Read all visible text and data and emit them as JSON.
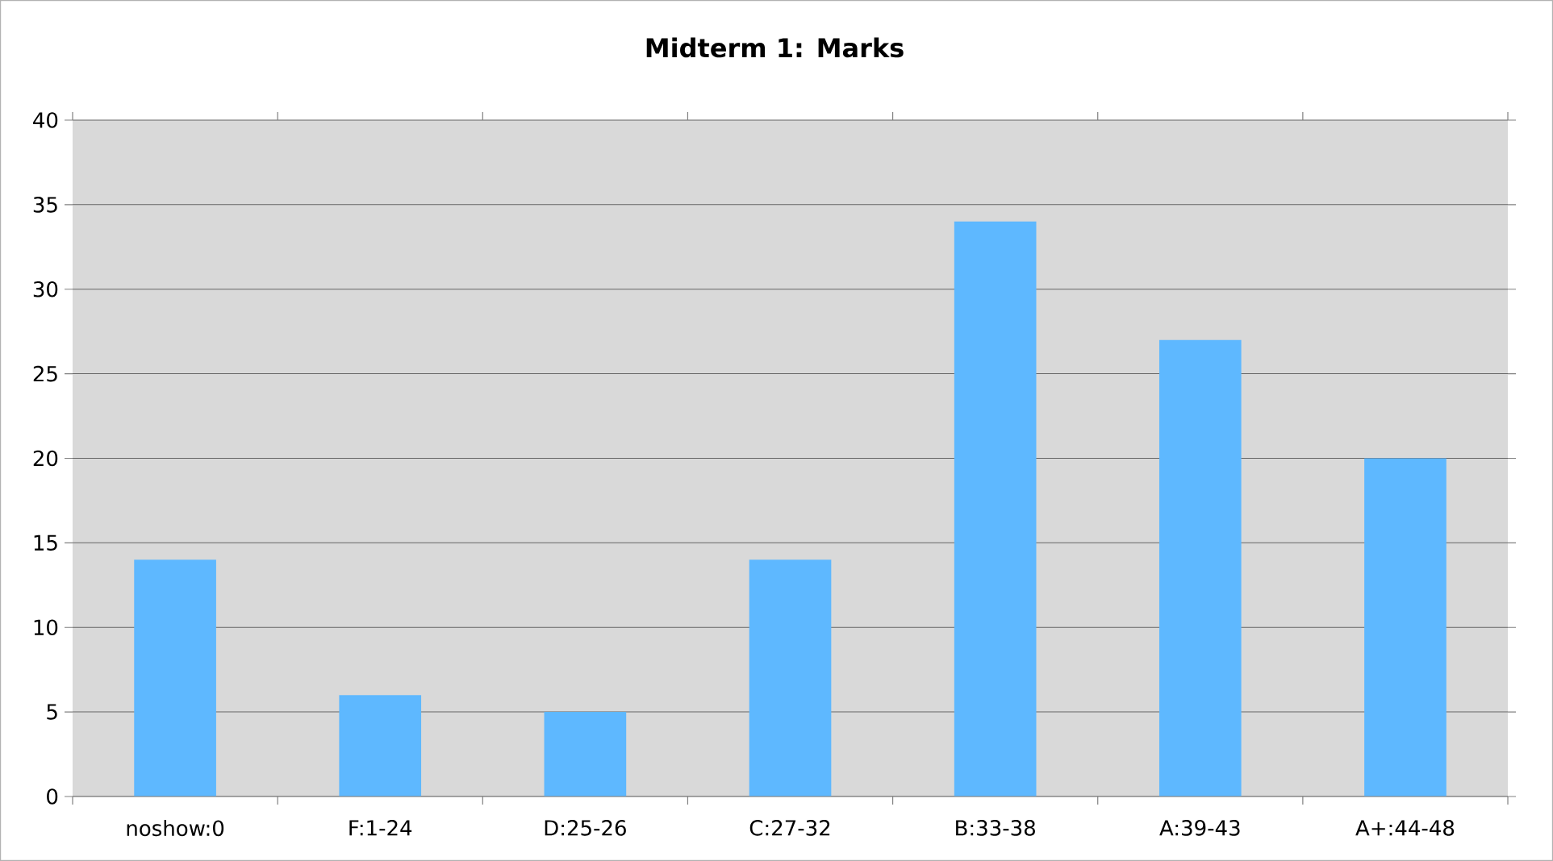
{
  "chart_data": {
    "type": "bar",
    "title": "Midterm 1: Marks",
    "categories": [
      "noshow:0",
      "F:1-24",
      "D:25-26",
      "C:27-32",
      "B:33-38",
      "A:39-43",
      "A+:44-48"
    ],
    "values": [
      14,
      6,
      5,
      14,
      34,
      27,
      20
    ],
    "color": "#5eb8ff",
    "ylim": [
      0,
      40
    ],
    "yticks": [
      0,
      5,
      10,
      15,
      20,
      25,
      30,
      35,
      40
    ],
    "grid": "y"
  }
}
